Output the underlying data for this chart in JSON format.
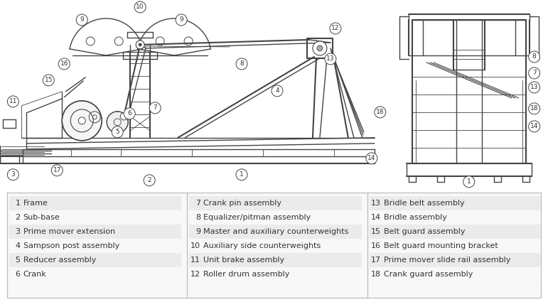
{
  "bg_color": "#ffffff",
  "line_color": "#444444",
  "text_color": "#333333",
  "lw_main": 1.0,
  "lw_thin": 0.6,
  "lw_thick": 1.5,
  "circle_r": 8,
  "circle_fs": 6.5,
  "parts": [
    {
      "num": 1,
      "name": "Frame"
    },
    {
      "num": 2,
      "name": "Sub-base"
    },
    {
      "num": 3,
      "name": "Prime mover extension"
    },
    {
      "num": 4,
      "name": "Sampson post assembly"
    },
    {
      "num": 5,
      "name": "Reducer assembly"
    },
    {
      "num": 6,
      "name": "Crank"
    },
    {
      "num": 7,
      "name": "Crank pin assembly"
    },
    {
      "num": 8,
      "name": "Equalizer/pitman assembly"
    },
    {
      "num": 9,
      "name": "Master and auxiliary counterweights"
    },
    {
      "num": 10,
      "name": "Auxiliary side counterweights"
    },
    {
      "num": 11,
      "name": "Unit brake assembly"
    },
    {
      "num": 12,
      "name": "Roller drum assembly"
    },
    {
      "num": 13,
      "name": "Bridle belt assembly"
    },
    {
      "num": 14,
      "name": "Bridle assembly"
    },
    {
      "num": 15,
      "name": "Belt guard assembly"
    },
    {
      "num": 16,
      "name": "Belt guard mounting bracket"
    },
    {
      "num": 17,
      "name": "Prime mover slide rail assembly"
    },
    {
      "num": 18,
      "name": "Crank guard assembly"
    }
  ]
}
